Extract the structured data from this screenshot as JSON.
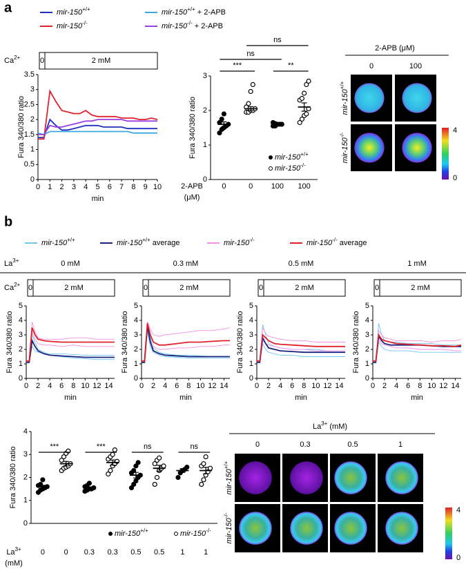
{
  "panels": [
    "a",
    "b"
  ],
  "images_a": {
    "title": "2-APB (μM)",
    "columns": [
      "0",
      "100"
    ],
    "rows": [
      "mir-150+/+",
      "mir-150-/-"
    ],
    "colorbar_ticks": [
      4,
      0
    ]
  },
  "b_label": "La3+",
  "images_b": {
    "title": "La3+ (mM)",
    "columns": [
      "0",
      "0.3",
      "0.5",
      "1"
    ],
    "rows": [
      "mir-150+/+",
      "mir-150-/-"
    ],
    "colorbar_ticks": [
      4,
      0
    ]
  },
  "chart_data": [
    {
      "type": "line",
      "ylabel": "Fura 340/380 ratio",
      "xlabel": "min",
      "ca_label": "Ca2+",
      "ca_zero": "0",
      "ca_text": "2 mM",
      "x": [
        0,
        0.5,
        1,
        1.5,
        2,
        2.5,
        3,
        3.5,
        4,
        4.5,
        5,
        5.5,
        6,
        6.5,
        7,
        7.5,
        8,
        8.5,
        9,
        9.5,
        10
      ],
      "xlim": [
        0,
        10
      ],
      "xticks": [
        0,
        1,
        2,
        3,
        4,
        5,
        6,
        7,
        8,
        9,
        10
      ],
      "ylim": [
        0,
        3.5
      ],
      "yticks": [
        0,
        0.5,
        1,
        1.5,
        2,
        2.5,
        3,
        3.5
      ],
      "series": [
        {
          "name": "mir-150+/+",
          "color": "#1f2fbf",
          "values": [
            1.4,
            1.4,
            2.0,
            1.8,
            1.65,
            1.65,
            1.7,
            1.75,
            1.8,
            1.8,
            1.8,
            1.75,
            1.75,
            1.75,
            1.75,
            1.7,
            1.7,
            1.7,
            1.7,
            1.7,
            1.7
          ]
        },
        {
          "name": "mir-150+/+ + 2-APB",
          "color": "#3ba7e0",
          "values": [
            1.55,
            1.5,
            1.6,
            1.6,
            1.6,
            1.6,
            1.6,
            1.6,
            1.6,
            1.6,
            1.6,
            1.6,
            1.6,
            1.6,
            1.6,
            1.6,
            1.55,
            1.55,
            1.55,
            1.55,
            1.55
          ]
        },
        {
          "name": "mir-150-/-",
          "color": "#e0202a",
          "values": [
            1.35,
            1.35,
            2.95,
            2.6,
            2.3,
            2.25,
            2.2,
            2.2,
            2.3,
            2.15,
            2.1,
            2.1,
            2.1,
            2.1,
            2.05,
            2.05,
            2.05,
            2.0,
            2.0,
            2.05,
            2.0
          ]
        },
        {
          "name": "mir-150-/- + 2-APB",
          "color": "#9a3fe0",
          "values": [
            1.5,
            1.5,
            1.8,
            1.75,
            1.75,
            1.8,
            1.85,
            1.9,
            1.95,
            1.95,
            2.0,
            2.0,
            2.0,
            2.0,
            2.0,
            1.95,
            1.95,
            1.95,
            1.95,
            1.95,
            1.95
          ]
        }
      ]
    },
    {
      "type": "dot",
      "ylabel": "Fura 340/380 ratio",
      "xlabel_lines": [
        "2-APB",
        "(μM)"
      ],
      "categories": [
        "0",
        "0",
        "100",
        "100"
      ],
      "ylim": [
        0,
        3
      ],
      "yticks": [
        0,
        1,
        2,
        3
      ],
      "series": [
        {
          "name": "mir-150+/+",
          "fill": "#000000"
        },
        {
          "name": "mir-150-/-",
          "fill": "#ffffff"
        }
      ],
      "group_series": [
        0,
        1,
        0,
        1
      ],
      "points": [
        [
          1.35,
          1.45,
          1.5,
          1.55,
          1.6,
          1.65,
          1.75,
          1.9
        ],
        [
          1.95,
          1.95,
          2.0,
          2.0,
          2.05,
          2.1,
          2.2,
          2.55,
          2.75
        ],
        [
          1.55,
          1.55,
          1.6,
          1.6,
          1.6,
          1.65,
          1.62
        ],
        [
          1.65,
          1.75,
          1.85,
          1.9,
          2.05,
          2.3,
          2.35,
          2.5,
          2.75,
          2.85
        ]
      ],
      "means": [
        1.6,
        2.05,
        1.6,
        2.1
      ],
      "sems": [
        0.07,
        0.06,
        0.02,
        0.12
      ],
      "annotations": [
        "***",
        "**",
        "ns",
        "ns"
      ]
    },
    {
      "type": "line",
      "title": "0 mM",
      "ylabel": "Fura 340/380 ratio",
      "xlabel": "min",
      "ca_label": "Ca2+",
      "ca_zero": "0",
      "ca_text": "2 mM",
      "x": [
        0,
        0.5,
        1,
        1.5,
        2,
        3,
        4,
        6,
        8,
        10,
        12,
        14,
        15
      ],
      "xlim": [
        0,
        15
      ],
      "xticks": [
        0,
        2,
        4,
        6,
        8,
        10,
        12,
        14
      ],
      "ylim": [
        0,
        5
      ],
      "yticks": [
        0,
        1,
        2,
        3,
        4,
        5
      ],
      "series": [
        {
          "name": "mir-150+/+",
          "color": "#6ec6f0",
          "traces": [
            [
              1.1,
              1.1,
              3.0,
              2.5,
              2.0,
              1.8,
              1.6,
              1.5,
              1.4,
              1.35,
              1.3,
              1.3,
              1.3
            ],
            [
              1.1,
              1.1,
              2.2,
              1.9,
              1.8,
              1.7,
              1.7,
              1.7,
              1.65,
              1.6,
              1.6,
              1.6,
              1.6
            ]
          ]
        },
        {
          "name": "mir-150-/-",
          "color": "#f48fe8",
          "traces": [
            [
              1.2,
              1.2,
              3.9,
              3.2,
              2.8,
              2.7,
              2.7,
              2.7,
              2.8,
              2.8,
              2.7,
              2.7,
              2.7
            ],
            [
              1.2,
              1.2,
              3.2,
              2.7,
              2.4,
              2.3,
              2.3,
              2.2,
              2.3,
              2.2,
              2.2,
              2.2,
              2.2
            ]
          ]
        },
        {
          "name": "mir-150+/+ average",
          "color": "#1a237e",
          "values": [
            1.1,
            1.1,
            2.6,
            2.2,
            1.9,
            1.7,
            1.6,
            1.55,
            1.5,
            1.45,
            1.45,
            1.45,
            1.45
          ]
        },
        {
          "name": "mir-150-/- average",
          "color": "#e0202a",
          "values": [
            1.2,
            1.2,
            3.5,
            3.0,
            2.7,
            2.6,
            2.55,
            2.5,
            2.5,
            2.5,
            2.5,
            2.5,
            2.5
          ]
        }
      ]
    },
    {
      "type": "line",
      "title": "0.3 mM",
      "ylabel": "Fura 340/380 ratio",
      "xlabel": "min",
      "ca_zero": "0",
      "ca_text": "2 mM",
      "x": [
        0,
        0.5,
        1,
        1.5,
        2,
        3,
        4,
        6,
        8,
        10,
        12,
        14,
        15
      ],
      "xlim": [
        0,
        15
      ],
      "xticks": [
        0,
        2,
        4,
        6,
        8,
        10,
        12,
        14
      ],
      "ylim": [
        0,
        5
      ],
      "yticks": [
        0,
        1,
        2,
        3,
        4,
        5
      ],
      "series": [
        {
          "color": "#6ec6f0",
          "traces": [
            [
              1.1,
              1.1,
              3.9,
              2.8,
              2.1,
              1.8,
              1.7,
              1.6,
              1.6,
              1.55,
              1.5,
              1.5,
              1.5
            ],
            [
              1.1,
              1.1,
              3.2,
              2.2,
              1.8,
              1.6,
              1.5,
              1.45,
              1.4,
              1.4,
              1.4,
              1.4,
              1.4
            ]
          ]
        },
        {
          "color": "#f48fe8",
          "traces": [
            [
              1.2,
              1.2,
              3.9,
              3.4,
              3.0,
              2.9,
              3.0,
              3.1,
              3.2,
              3.3,
              3.3,
              3.4,
              3.5
            ],
            [
              1.2,
              1.2,
              3.5,
              2.6,
              2.2,
              2.0,
              2.0,
              2.1,
              2.1,
              2.2,
              2.2,
              2.3,
              2.3
            ]
          ]
        },
        {
          "color": "#1a237e",
          "values": [
            1.1,
            1.1,
            3.6,
            2.5,
            1.9,
            1.7,
            1.6,
            1.55,
            1.5,
            1.5,
            1.5,
            1.5,
            1.5
          ]
        },
        {
          "color": "#e0202a",
          "values": [
            1.2,
            1.2,
            3.8,
            3.0,
            2.5,
            2.3,
            2.3,
            2.4,
            2.5,
            2.5,
            2.55,
            2.6,
            2.6
          ]
        }
      ]
    },
    {
      "type": "line",
      "title": "0.5 mM",
      "ylabel": "Fura 340/380 ratio",
      "xlabel": "min",
      "ca_zero": "0",
      "ca_text": "2 mM",
      "x": [
        0,
        0.5,
        1,
        1.5,
        2,
        3,
        4,
        6,
        8,
        10,
        12,
        14,
        15
      ],
      "xlim": [
        0,
        15
      ],
      "xticks": [
        0,
        2,
        4,
        6,
        8,
        10,
        12,
        14
      ],
      "ylim": [
        0,
        5
      ],
      "yticks": [
        0,
        1,
        2,
        3,
        4,
        5
      ],
      "series": [
        {
          "color": "#6ec6f0",
          "traces": [
            [
              1.1,
              1.1,
              3.7,
              3.0,
              2.4,
              2.2,
              2.1,
              2.0,
              2.0,
              2.0,
              1.9,
              1.9,
              1.9
            ],
            [
              1.1,
              1.1,
              2.4,
              2.0,
              1.8,
              1.7,
              1.6,
              1.6,
              1.5,
              1.5,
              1.5,
              1.5,
              1.5
            ]
          ]
        },
        {
          "color": "#f48fe8",
          "traces": [
            [
              1.2,
              1.2,
              3.5,
              3.1,
              2.9,
              2.8,
              2.7,
              2.6,
              2.6,
              2.5,
              2.5,
              2.5,
              2.5
            ],
            [
              1.2,
              1.2,
              2.6,
              2.4,
              2.3,
              2.2,
              2.1,
              2.0,
              2.0,
              1.9,
              1.9,
              1.9,
              1.9
            ]
          ]
        },
        {
          "color": "#1a237e",
          "values": [
            1.1,
            1.1,
            2.8,
            2.4,
            2.1,
            2.0,
            1.9,
            1.85,
            1.8,
            1.8,
            1.8,
            1.8,
            1.8
          ]
        },
        {
          "color": "#e0202a",
          "values": [
            1.2,
            1.2,
            3.0,
            2.8,
            2.6,
            2.4,
            2.35,
            2.3,
            2.25,
            2.2,
            2.2,
            2.2,
            2.2
          ]
        }
      ]
    },
    {
      "type": "line",
      "title": "1 mM",
      "ylabel": "Fura 340/380 ratio",
      "xlabel": "min",
      "ca_zero": "0",
      "ca_text": "2 mM",
      "x": [
        0,
        0.5,
        1,
        1.5,
        2,
        3,
        4,
        6,
        8,
        10,
        12,
        14,
        15
      ],
      "xlim": [
        0,
        15
      ],
      "xticks": [
        0,
        2,
        4,
        6,
        8,
        10,
        12,
        14
      ],
      "ylim": [
        0,
        5
      ],
      "yticks": [
        0,
        1,
        2,
        3,
        4,
        5
      ],
      "series": [
        {
          "color": "#6ec6f0",
          "traces": [
            [
              1.1,
              1.1,
              3.8,
              3.0,
              2.6,
              2.5,
              2.5,
              2.4,
              2.4,
              2.4,
              2.3,
              2.3,
              2.3
            ],
            [
              1.1,
              1.1,
              2.5,
              2.2,
              2.0,
              1.9,
              1.9,
              1.9,
              1.8,
              1.8,
              1.8,
              1.8,
              1.8
            ]
          ]
        },
        {
          "color": "#f48fe8",
          "traces": [
            [
              1.2,
              1.2,
              3.3,
              3.0,
              2.8,
              2.7,
              2.6,
              2.6,
              2.6,
              2.5,
              2.6,
              2.6,
              2.7
            ],
            [
              1.2,
              1.2,
              2.7,
              2.4,
              2.3,
              2.2,
              2.1,
              2.1,
              2.0,
              2.0,
              2.0,
              1.9,
              1.9
            ]
          ]
        },
        {
          "color": "#1a237e",
          "values": [
            1.1,
            1.1,
            2.9,
            2.6,
            2.4,
            2.3,
            2.3,
            2.3,
            2.3,
            2.25,
            2.2,
            2.2,
            2.2
          ]
        },
        {
          "color": "#e0202a",
          "values": [
            1.2,
            1.2,
            3.0,
            2.7,
            2.6,
            2.5,
            2.4,
            2.35,
            2.3,
            2.25,
            2.25,
            2.2,
            2.3
          ]
        }
      ]
    },
    {
      "type": "dot",
      "ylabel": "Fura 340/380 ratio",
      "xlabel_lines": [
        "La3+",
        "(mM)"
      ],
      "categories": [
        "0",
        "0",
        "0.3",
        "0.3",
        "0.5",
        "0.5",
        "1",
        "1"
      ],
      "ylim": [
        0,
        4
      ],
      "yticks": [
        0,
        1,
        2,
        3,
        4
      ],
      "series": [
        {
          "name": "mir-150+/+",
          "fill": "#000000"
        },
        {
          "name": "mir-150-/-",
          "fill": "#ffffff"
        }
      ],
      "group_series": [
        0,
        1,
        0,
        1,
        0,
        1,
        0,
        1
      ],
      "points": [
        [
          1.35,
          1.45,
          1.5,
          1.55,
          1.6,
          1.65,
          1.7,
          1.9
        ],
        [
          2.3,
          2.4,
          2.45,
          2.5,
          2.6,
          2.75,
          2.9,
          3.05,
          3.15
        ],
        [
          1.4,
          1.45,
          1.5,
          1.5,
          1.55,
          1.6,
          1.65,
          1.75
        ],
        [
          2.15,
          2.3,
          2.5,
          2.6,
          2.7,
          2.8,
          2.9,
          3.0,
          3.2
        ],
        [
          1.55,
          1.7,
          1.85,
          2.0,
          2.1,
          2.2,
          2.3,
          2.5,
          2.65
        ],
        [
          1.7,
          2.0,
          2.3,
          2.4,
          2.5,
          2.6,
          2.75,
          2.85
        ],
        [
          2.0,
          2.2,
          2.3,
          2.35,
          2.45
        ],
        [
          1.7,
          1.9,
          2.1,
          2.25,
          2.4,
          2.5,
          2.6,
          2.9
        ]
      ],
      "means": [
        1.6,
        2.6,
        1.55,
        2.65,
        2.1,
        2.4,
        2.3,
        2.3
      ],
      "sems": [
        0.06,
        0.1,
        0.04,
        0.11,
        0.12,
        0.13,
        0.08,
        0.14
      ],
      "annotations": [
        "***",
        "***",
        "ns",
        "ns"
      ]
    }
  ]
}
